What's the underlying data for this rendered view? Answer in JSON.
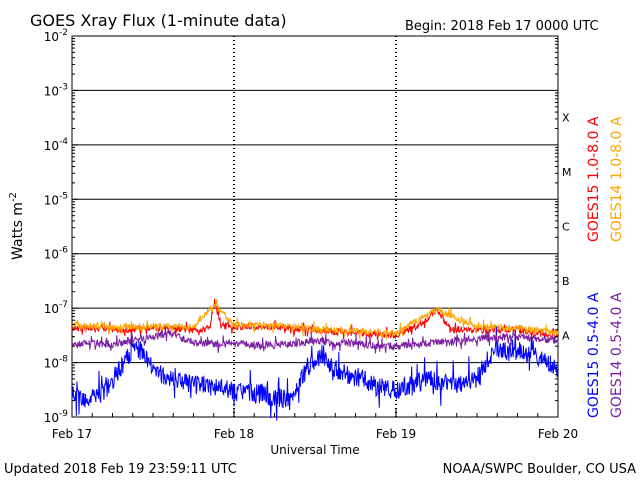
{
  "chart_data": {
    "type": "line",
    "title": "GOES Xray Flux (1-minute data)",
    "begin_text": "Begin:  2018 Feb 17 0000 UTC",
    "xlabel": "Universal Time",
    "ylabel": "Watts m",
    "ylabel_sup": "-2",
    "y_scale": "log",
    "ylim": [
      1e-09,
      0.01
    ],
    "y_ticks": [
      {
        "base": "10",
        "exp": "-9"
      },
      {
        "base": "10",
        "exp": "-8"
      },
      {
        "base": "10",
        "exp": "-7"
      },
      {
        "base": "10",
        "exp": "-6"
      },
      {
        "base": "10",
        "exp": "-5"
      },
      {
        "base": "10",
        "exp": "-4"
      },
      {
        "base": "10",
        "exp": "-3"
      },
      {
        "base": "10",
        "exp": "-2"
      }
    ],
    "x_ticks": [
      "Feb 17",
      "Feb 18",
      "Feb 19",
      "Feb 20"
    ],
    "xlim_days": [
      0,
      3
    ],
    "grid": true,
    "flare_classes": [
      "A",
      "B",
      "C",
      "M",
      "X"
    ],
    "footer_left": "Updated 2018 Feb 19 23:59:11 UTC",
    "footer_right": "NOAA/SWPC Boulder, CO USA",
    "series": [
      {
        "name": "GOES15 1.0-8.0 A",
        "color": "#ff0000",
        "day": [
          0,
          0.25,
          0.5,
          0.75,
          0.85,
          0.88,
          0.92,
          1.0,
          1.25,
          1.45,
          1.55,
          1.75,
          2.0,
          2.15,
          2.25,
          2.35,
          2.5,
          2.75,
          3.0
        ],
        "flux": [
          4.5e-08,
          4e-08,
          4.2e-08,
          4e-08,
          4.2e-08,
          1.3e-07,
          5e-08,
          4.5e-08,
          4.5e-08,
          4e-08,
          3.8e-08,
          3.5e-08,
          3.2e-08,
          5e-08,
          9e-08,
          4e-08,
          4e-08,
          4e-08,
          3e-08
        ]
      },
      {
        "name": "GOES14 1.0-8.0 A",
        "color": "#ffa500",
        "day": [
          0,
          0.25,
          0.5,
          0.75,
          0.88,
          1.0,
          1.25,
          1.45,
          1.75,
          2.0,
          2.25,
          2.5,
          2.75,
          3.0
        ],
        "flux": [
          5e-08,
          4.5e-08,
          4.6e-08,
          4.5e-08,
          1.2e-07,
          5e-08,
          5e-08,
          4.2e-08,
          3.8e-08,
          3.5e-08,
          9.5e-08,
          4.5e-08,
          4.3e-08,
          3.5e-08
        ]
      },
      {
        "name": "GOES15 0.5-4.0 A",
        "color": "#0000ff",
        "day": [
          0,
          0.1,
          0.2,
          0.3,
          0.4,
          0.5,
          0.6,
          0.75,
          0.9,
          1.0,
          1.2,
          1.35,
          1.45,
          1.55,
          1.6,
          1.7,
          1.8,
          1.9,
          2.0,
          2.1,
          2.2,
          2.35,
          2.5,
          2.6,
          2.75,
          2.9,
          3.0
        ],
        "flux": [
          2.5e-09,
          2e-09,
          3e-09,
          8e-09,
          2e-08,
          8e-09,
          5e-09,
          4e-09,
          3.5e-09,
          3e-09,
          2.5e-09,
          2e-09,
          8e-09,
          1.5e-08,
          8e-09,
          6e-09,
          5e-09,
          3.5e-09,
          3e-09,
          4e-09,
          5e-09,
          4e-09,
          5e-09,
          1.8e-08,
          1.5e-08,
          1.2e-08,
          7e-09
        ]
      },
      {
        "name": "GOES14 0.5-4.0 A",
        "color": "#7a1fa2",
        "day": [
          0,
          0.25,
          0.6,
          0.75,
          1.0,
          1.25,
          1.5,
          1.75,
          2.0,
          2.25,
          2.5,
          2.75,
          3.0
        ],
        "flux": [
          2.2e-08,
          2.2e-08,
          3.5e-08,
          2.3e-08,
          2.2e-08,
          2.1e-08,
          2.5e-08,
          2.2e-08,
          2e-08,
          2.3e-08,
          2.8e-08,
          3e-08,
          2.5e-08
        ]
      }
    ]
  }
}
